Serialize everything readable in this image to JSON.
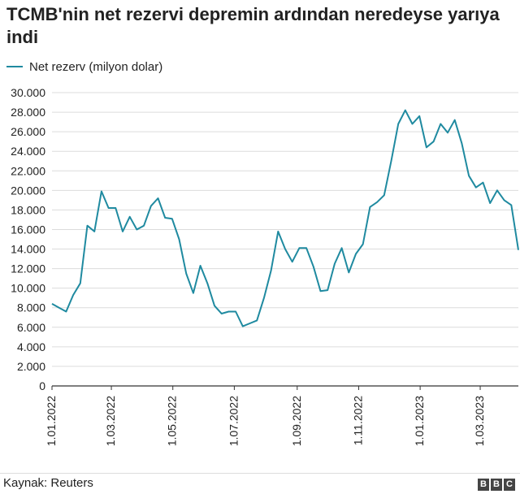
{
  "chart_data": {
    "type": "line",
    "title": "TCMB'nin net rezervi depremin ardından neredeyse yarıya indi",
    "legend_position": "top-left",
    "grid": true,
    "ylim": [
      0,
      30000
    ],
    "y_ticks": [
      "0",
      "2.000",
      "4.000",
      "6.000",
      "8.000",
      "10.000",
      "12.000",
      "14.000",
      "16.000",
      "18.000",
      "20.000",
      "22.000",
      "24.000",
      "26.000",
      "28.000",
      "30.000"
    ],
    "x_ticks": [
      {
        "label": "1.01.2022",
        "week": 0
      },
      {
        "label": "1.03.2022",
        "week": 8.4
      },
      {
        "label": "1.05.2022",
        "week": 17.1
      },
      {
        "label": "1.07.2022",
        "week": 25.8
      },
      {
        "label": "1.09.2022",
        "week": 34.7
      },
      {
        "label": "1.11.2022",
        "week": 43.4
      },
      {
        "label": "1.01.2023",
        "week": 52.1
      },
      {
        "label": "1.03.2023",
        "week": 60.6
      }
    ],
    "series": [
      {
        "name": "Net rezerv (milyon dolar)",
        "color": "#1f8aa0",
        "values": [
          8400,
          8000,
          7600,
          9300,
          10500,
          16400,
          15800,
          19900,
          18200,
          18200,
          15800,
          17300,
          16000,
          16400,
          18400,
          19200,
          17200,
          17100,
          15000,
          11500,
          9500,
          12300,
          10500,
          8200,
          7400,
          7600,
          7600,
          6100,
          6400,
          6700,
          9000,
          11800,
          15800,
          14000,
          12700,
          14100,
          14100,
          12200,
          9700,
          9800,
          12500,
          14100,
          11600,
          13500,
          14500,
          18300,
          18800,
          19500,
          23000,
          26800,
          28200,
          26800,
          27600,
          24400,
          25000,
          26800,
          25900,
          27200,
          24800,
          21500,
          20300,
          20800,
          18700,
          20000,
          19000,
          18500,
          13900
        ]
      }
    ]
  },
  "source": "Kaynak: Reuters",
  "logo": [
    "B",
    "B",
    "C"
  ]
}
